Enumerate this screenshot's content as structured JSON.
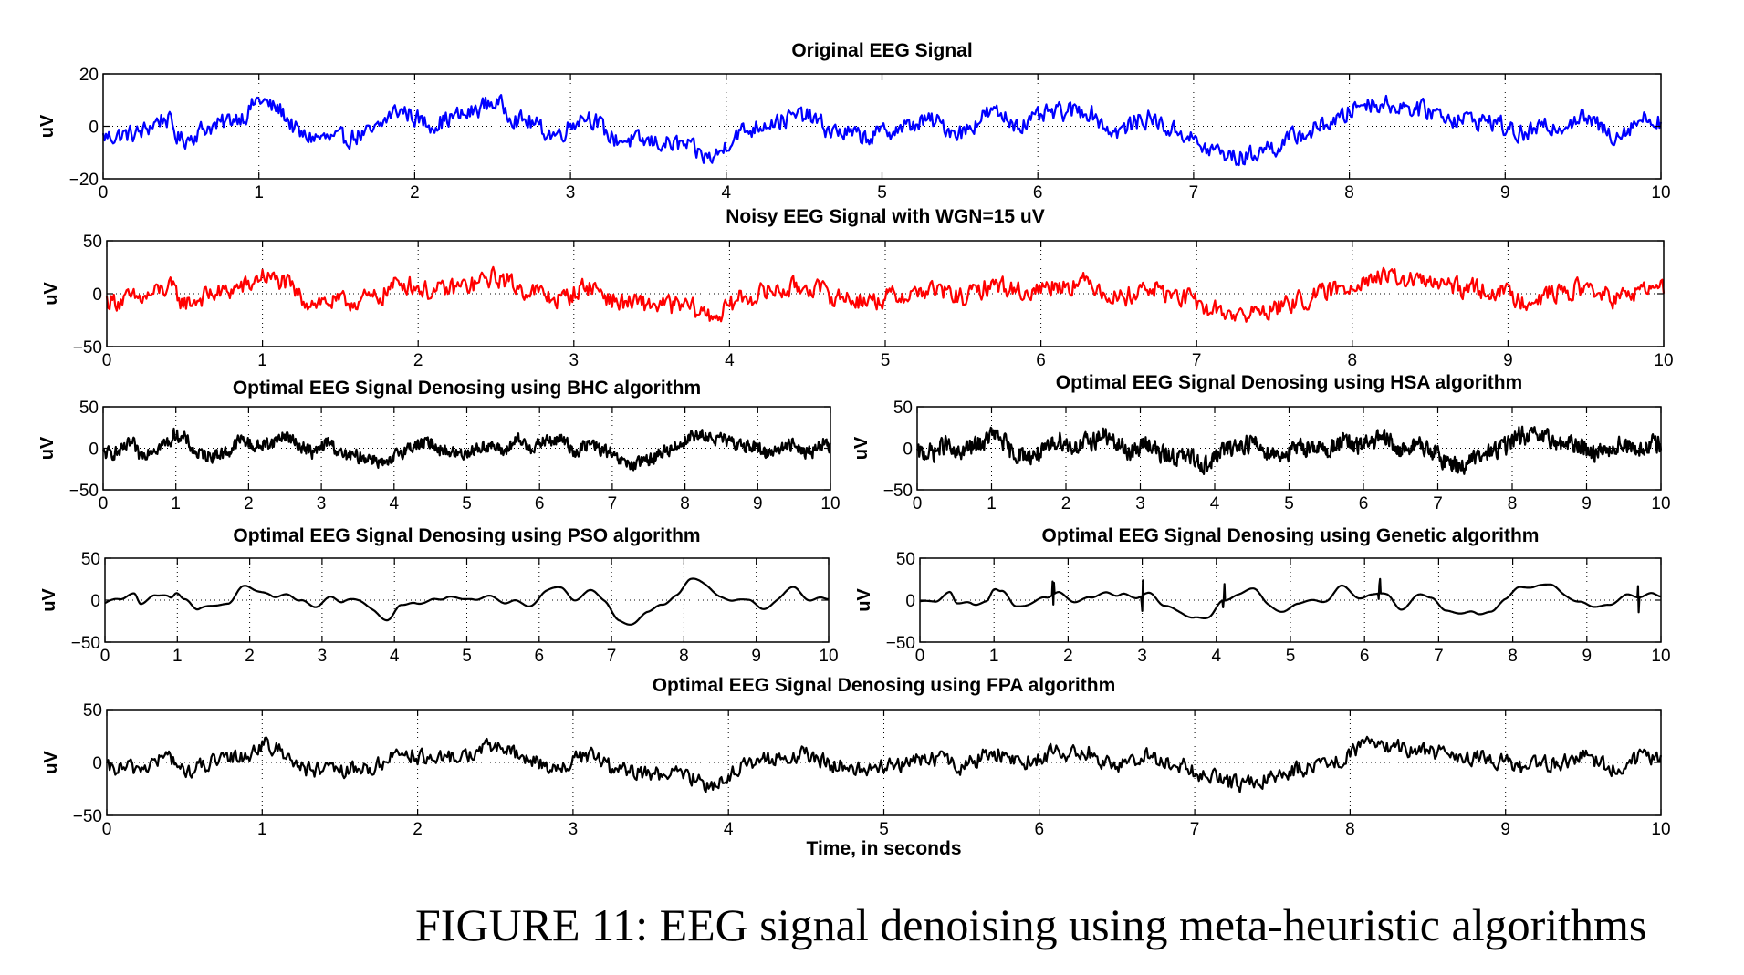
{
  "caption": "FIGURE 11: EEG signal denoising using meta-heuristic algorithms",
  "chart_data": [
    {
      "id": "original",
      "type": "line",
      "title": "Original EEG Signal",
      "ylabel": "uV",
      "xlabel": "",
      "xlim": [
        0,
        10
      ],
      "ylim": [
        -20,
        20
      ],
      "yticks": [
        -20,
        0,
        20
      ],
      "xticks": [
        0,
        1,
        2,
        3,
        4,
        5,
        6,
        7,
        8,
        9,
        10
      ],
      "grid": "dotted",
      "color": "#0000ff",
      "noise": 3.2,
      "spike": 0
    },
    {
      "id": "noisy",
      "type": "line",
      "title": "Noisy EEG Signal with WGN=15 uV",
      "ylabel": "uV",
      "xlabel": "",
      "xlim": [
        0,
        10
      ],
      "ylim": [
        -50,
        50
      ],
      "yticks": [
        -50,
        0,
        50
      ],
      "xticks": [
        0,
        1,
        2,
        3,
        4,
        5,
        6,
        7,
        8,
        9,
        10
      ],
      "grid": "dotted",
      "color": "#ff0000",
      "noise": 6,
      "spike": 0
    },
    {
      "id": "bhc",
      "type": "line",
      "title": "Optimal EEG Signal Denosing using BHC algorithm",
      "ylabel": "uV",
      "xlabel": "",
      "xlim": [
        0,
        10
      ],
      "ylim": [
        -50,
        50
      ],
      "yticks": [
        -50,
        0,
        50
      ],
      "xticks": [
        0,
        1,
        2,
        3,
        4,
        5,
        6,
        7,
        8,
        9,
        10
      ],
      "grid": "dotted",
      "color": "#000000",
      "noise": 5,
      "spike": 0
    },
    {
      "id": "hsa",
      "type": "line",
      "title": "Optimal EEG Signal Denosing using HSA algorithm",
      "ylabel": "uV",
      "xlabel": "",
      "xlim": [
        0,
        10
      ],
      "ylim": [
        -50,
        50
      ],
      "yticks": [
        -50,
        0,
        50
      ],
      "xticks": [
        0,
        1,
        2,
        3,
        4,
        5,
        6,
        7,
        8,
        9,
        10
      ],
      "grid": "dotted",
      "color": "#000000",
      "noise": 7,
      "spike": 0
    },
    {
      "id": "pso",
      "type": "line",
      "title": "Optimal EEG Signal Denosing using PSO algorithm",
      "ylabel": "uV",
      "xlabel": "",
      "xlim": [
        0,
        10
      ],
      "ylim": [
        -50,
        50
      ],
      "yticks": [
        -50,
        0,
        50
      ],
      "xticks": [
        0,
        1,
        2,
        3,
        4,
        5,
        6,
        7,
        8,
        9,
        10
      ],
      "grid": "dotted",
      "color": "#000000",
      "noise": 0,
      "spike": 0
    },
    {
      "id": "genetic",
      "type": "line",
      "title": "Optimal EEG Signal Denosing using Genetic algorithm",
      "ylabel": "uV",
      "xlabel": "",
      "xlim": [
        0,
        10
      ],
      "ylim": [
        -50,
        50
      ],
      "yticks": [
        -50,
        0,
        50
      ],
      "xticks": [
        0,
        1,
        2,
        3,
        4,
        5,
        6,
        7,
        8,
        9,
        10
      ],
      "grid": "dotted",
      "color": "#000000",
      "noise": 0,
      "spike": 1
    },
    {
      "id": "fpa",
      "type": "line",
      "title": "Optimal EEG Signal Denosing using FPA algorithm",
      "ylabel": "uV",
      "xlabel": "Time, in seconds",
      "xlim": [
        0,
        10
      ],
      "ylim": [
        -50,
        50
      ],
      "yticks": [
        -50,
        0,
        50
      ],
      "xticks": [
        0,
        1,
        2,
        3,
        4,
        5,
        6,
        7,
        8,
        9,
        10
      ],
      "grid": "dotted",
      "color": "#000000",
      "noise": 5,
      "spike": 0
    }
  ],
  "base_signal": {
    "x": [
      0,
      0.2,
      0.4,
      0.5,
      0.7,
      0.9,
      1.0,
      1.1,
      1.3,
      1.5,
      1.7,
      1.9,
      2.1,
      2.3,
      2.5,
      2.7,
      2.9,
      3.1,
      3.3,
      3.5,
      3.7,
      3.9,
      4.1,
      4.3,
      4.5,
      4.7,
      4.9,
      5.1,
      5.3,
      5.5,
      5.7,
      5.9,
      6.1,
      6.3,
      6.5,
      6.7,
      6.9,
      7.1,
      7.3,
      7.5,
      7.7,
      7.9,
      8.1,
      8.3,
      8.5,
      8.7,
      8.9,
      9.1,
      9.3,
      9.5,
      9.7,
      9.9,
      10.0
    ],
    "y": [
      -4,
      -3,
      3,
      -5,
      0,
      4,
      10,
      7,
      -4,
      -5,
      -3,
      6,
      1,
      4,
      9,
      2,
      -3,
      4,
      -5,
      -6,
      -7,
      -12,
      -2,
      2,
      4,
      -2,
      -4,
      -1,
      2,
      -2,
      5,
      1,
      5,
      6,
      -2,
      3,
      -2,
      -9,
      -12,
      -8,
      -3,
      2,
      9,
      8,
      6,
      3,
      2,
      -3,
      0,
      3,
      -3,
      3,
      2
    ]
  }
}
